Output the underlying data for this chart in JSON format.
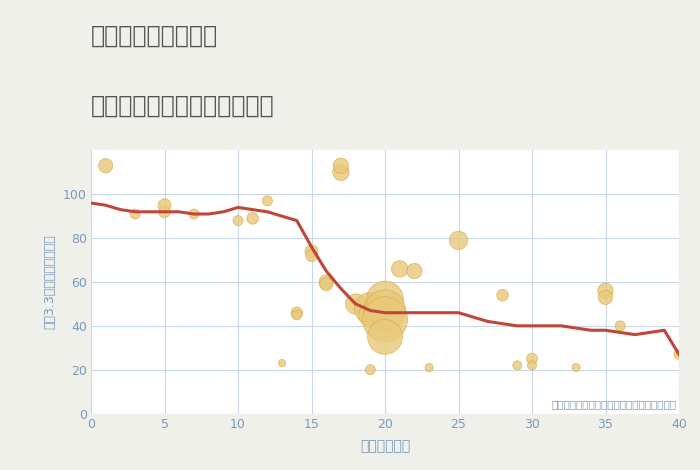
{
  "title_line1": "奈良県橿原市和田町",
  "title_line2": "築年数別中古マンション価格",
  "xlabel": "築年数（年）",
  "ylabel": "坪（3.3㎡）単価（万円）",
  "annotation": "円の大きさは、取引のあった物件面積を示す",
  "background_color": "#f0f0eb",
  "plot_bg_color": "#ffffff",
  "xlim": [
    0,
    40
  ],
  "ylim": [
    0,
    120
  ],
  "xticks": [
    0,
    5,
    10,
    15,
    20,
    25,
    30,
    35,
    40
  ],
  "yticks": [
    0,
    20,
    40,
    60,
    80,
    100
  ],
  "bubble_color": "#e8c97a",
  "bubble_edge_color": "#d4a840",
  "line_color": "#c0453a",
  "title_color": "#555555",
  "axis_color": "#7a99bb",
  "annotation_color": "#7a99bb",
  "grid_color": "#c8d8e8",
  "scatter_x": [
    1,
    3,
    5,
    5,
    7,
    10,
    11,
    12,
    13,
    14,
    14,
    15,
    15,
    16,
    16,
    17,
    17,
    18,
    19,
    19,
    19,
    20,
    20,
    20,
    20,
    21,
    22,
    23,
    25,
    28,
    29,
    30,
    30,
    33,
    35,
    35,
    36,
    40
  ],
  "scatter_y": [
    113,
    91,
    92,
    95,
    91,
    88,
    89,
    97,
    23,
    46,
    45,
    74,
    72,
    60,
    59,
    110,
    113,
    50,
    48,
    45,
    20,
    52,
    47,
    43,
    35,
    66,
    65,
    21,
    79,
    54,
    22,
    25,
    22,
    21,
    56,
    53,
    40,
    27
  ],
  "scatter_size": [
    30,
    15,
    20,
    25,
    15,
    15,
    20,
    15,
    8,
    20,
    15,
    25,
    20,
    30,
    25,
    40,
    35,
    60,
    150,
    80,
    15,
    200,
    250,
    300,
    180,
    40,
    35,
    10,
    50,
    20,
    12,
    18,
    12,
    10,
    35,
    30,
    15,
    15
  ],
  "line_x": [
    0,
    1,
    2,
    3,
    4,
    5,
    6,
    7,
    8,
    9,
    10,
    11,
    12,
    13,
    14,
    15,
    16,
    17,
    18,
    19,
    20,
    21,
    22,
    23,
    24,
    25,
    26,
    27,
    28,
    29,
    30,
    31,
    32,
    33,
    34,
    35,
    36,
    37,
    38,
    39,
    40
  ],
  "line_y": [
    96,
    95,
    93,
    92,
    92,
    92,
    92,
    91,
    91,
    92,
    94,
    93,
    92,
    90,
    88,
    76,
    65,
    57,
    50,
    47,
    46,
    46,
    46,
    46,
    46,
    46,
    44,
    42,
    41,
    40,
    40,
    40,
    40,
    39,
    38,
    38,
    37,
    36,
    37,
    38,
    27
  ]
}
